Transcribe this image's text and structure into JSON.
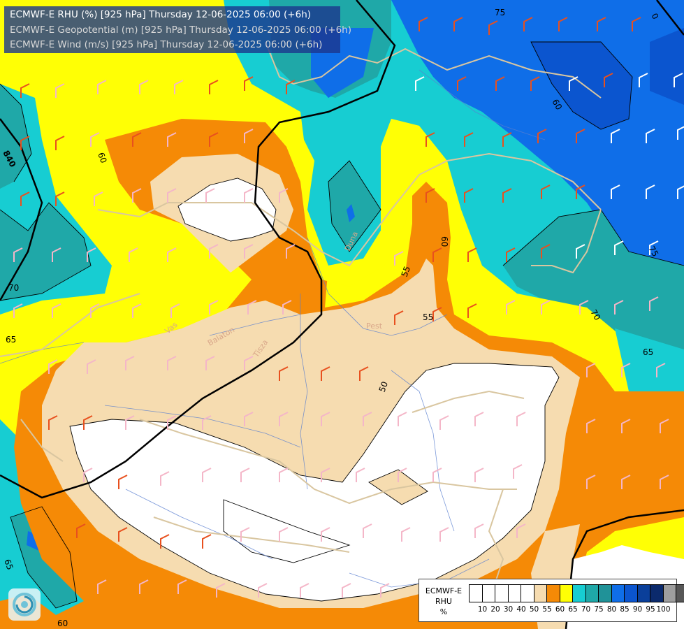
{
  "header": {
    "lines": [
      "ECMWF-E RHU (%) [925 hPa] Thursday 12-06-2025 06:00 (+6h)",
      "ECMWF-E Geopotential (m) [925 hPa] Thursday 12-06-2025 06:00 (+6h)",
      "ECMWF-E Wind (m/s) [925 hPa] Thursday 12-06-2025 06:00 (+6h)"
    ]
  },
  "legend": {
    "title_lines": [
      "ECMWF-E",
      "RHU",
      "%"
    ],
    "swatch_colors": [
      "#ffffff",
      "#ffffff",
      "#ffffff",
      "#ffffff",
      "#ffffff",
      "#f6dcb0",
      "#f58a06",
      "#ffff05",
      "#17cdd2",
      "#1fa8a8",
      "#209298",
      "#0f6ee8",
      "#0b55cf",
      "#0a3f9a",
      "#0b2a6c",
      "#9e9e9e",
      "#575757"
    ],
    "ticks": [
      "10",
      "20",
      "30",
      "40",
      "50",
      "55",
      "60",
      "65",
      "70",
      "75",
      "80",
      "85",
      "90",
      "95",
      "100"
    ]
  },
  "contour_labels": {
    "rhu": [
      "75",
      "0",
      "60",
      "60",
      "70",
      "65",
      "55",
      "55",
      "60",
      "50",
      "65",
      "70",
      "75",
      "65",
      "60"
    ],
    "geopotential": [
      "840"
    ]
  },
  "place_names": [
    "Pest",
    "Vas",
    "Tisza",
    "Balaton",
    "Duna"
  ],
  "colors": {
    "white": "#ffffff",
    "tan": "#f6dcb0",
    "orange": "#f58a06",
    "yellow": "#ffff05",
    "cyan": "#17cdd2",
    "teal": "#1fa8a8",
    "darkteal": "#209298",
    "blue": "#0f6ee8",
    "midblue": "#0b55cf",
    "navy": "#0a3f9a",
    "header_bg": "#1c368c",
    "barb_pink": "#f4b6c8",
    "barb_orange": "#e8501e",
    "barb_white": "#ffffff",
    "border_tan": "#d9c6a0",
    "river": "#5a7fd0"
  },
  "icons": {
    "logo": "ecmwf-swirl-icon"
  }
}
